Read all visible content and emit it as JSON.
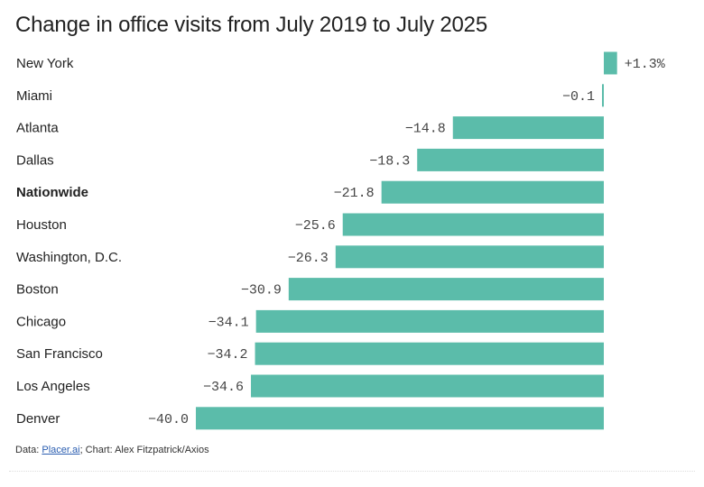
{
  "chart_data": {
    "type": "bar",
    "orientation": "horizontal",
    "title": "Change in office visits from July 2019 to July 2025",
    "categories": [
      "New York",
      "Miami",
      "Atlanta",
      "Dallas",
      "Nationwide",
      "Houston",
      "Washington, D.C.",
      "Boston",
      "Chicago",
      "San Francisco",
      "Los Angeles",
      "Denver"
    ],
    "values": [
      1.3,
      -0.1,
      -14.8,
      -18.3,
      -21.8,
      -25.6,
      -26.3,
      -30.9,
      -34.1,
      -34.2,
      -34.6,
      -40.0
    ],
    "labels": [
      "+1.3%",
      "−0.1",
      "−14.8",
      "−18.3",
      "−21.8",
      "−25.6",
      "−26.3",
      "−30.9",
      "−34.1",
      "−34.2",
      "−34.6",
      "−40.0"
    ],
    "highlight": [
      "Nationwide"
    ],
    "unit": "%",
    "xlim": [
      -40,
      1.3
    ],
    "bar_color": "#5bbcaa",
    "xlabel": "",
    "ylabel": "",
    "grid": false,
    "legend": "none"
  },
  "source": {
    "prefix": "Data: ",
    "link": "Placer.ai",
    "suffix": "; Chart: Alex Fitzpatrick/Axios"
  }
}
